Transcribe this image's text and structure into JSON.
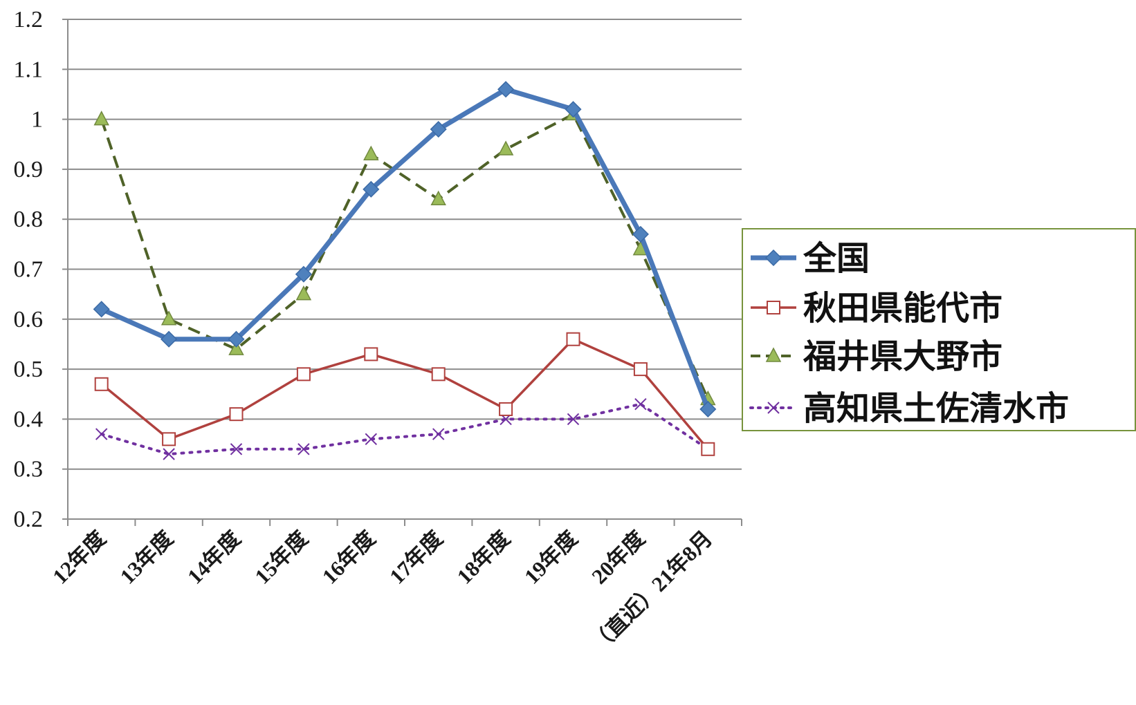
{
  "chart_data": {
    "type": "line",
    "categories": [
      "12年度",
      "13年度",
      "14年度",
      "15年度",
      "16年度",
      "17年度",
      "18年度",
      "19年度",
      "20年度",
      "（直近）21年8月"
    ],
    "ylim": [
      0.2,
      1.2
    ],
    "yticks": [
      "0.2",
      "0.3",
      "0.4",
      "0.5",
      "0.6",
      "0.7",
      "0.8",
      "0.9",
      "1",
      "1.1",
      "1.2"
    ],
    "grid": true,
    "legend_position": "right",
    "series": [
      {
        "name": "全国",
        "values": [
          0.62,
          0.56,
          0.56,
          0.69,
          0.86,
          0.98,
          1.06,
          1.02,
          0.77,
          0.42
        ],
        "color": "#4a78b8",
        "marker": "diamond",
        "dash": "solid"
      },
      {
        "name": "秋田県能代市",
        "values": [
          0.47,
          0.36,
          0.41,
          0.49,
          0.53,
          0.49,
          0.42,
          0.56,
          0.5,
          0.34
        ],
        "color": "#b0413e",
        "marker": "square",
        "dash": "solid"
      },
      {
        "name": "福井県大野市",
        "values": [
          1.0,
          0.6,
          0.54,
          0.65,
          0.93,
          0.84,
          0.94,
          1.01,
          0.74,
          0.44
        ],
        "color": "#4f6228",
        "marker": "triangle",
        "dash": "dashed"
      },
      {
        "name": "高知県土佐清水市",
        "values": [
          0.37,
          0.33,
          0.34,
          0.34,
          0.36,
          0.37,
          0.4,
          0.4,
          0.43,
          0.34
        ],
        "color": "#7030a0",
        "marker": "x",
        "dash": "dotted"
      }
    ]
  }
}
